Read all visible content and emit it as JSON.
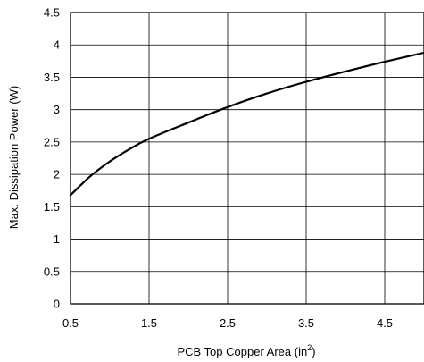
{
  "chart_data": {
    "type": "line",
    "title": "",
    "xlabel_prefix": "PCB Top Copper Area (in",
    "xlabel_sup": "2",
    "xlabel_suffix": ")",
    "ylabel": "Max. Dissipation Power (W)",
    "xlim": [
      0.5,
      5.0
    ],
    "ylim": [
      0,
      4.5
    ],
    "xticks": [
      0.5,
      1.5,
      2.5,
      3.5,
      4.5
    ],
    "xtick_labels": [
      "0.5",
      "1.5",
      "2.5",
      "3.5",
      "4.5"
    ],
    "yticks": [
      0,
      0.5,
      1,
      1.5,
      2,
      2.5,
      3,
      3.5,
      4,
      4.5
    ],
    "ytick_labels": [
      "0",
      "0.5",
      "1",
      "1.5",
      "2",
      "2.5",
      "3",
      "3.5",
      "4",
      "4.5"
    ],
    "grid": true,
    "line_color": "#000000",
    "series": [
      {
        "x": [
          0.5,
          0.75,
          1.0,
          1.25,
          1.5,
          2.0,
          2.5,
          3.0,
          3.5,
          4.0,
          4.5,
          5.0
        ],
        "values": [
          1.68,
          1.97,
          2.2,
          2.39,
          2.55,
          2.8,
          3.04,
          3.25,
          3.43,
          3.59,
          3.74,
          3.88
        ]
      }
    ]
  }
}
